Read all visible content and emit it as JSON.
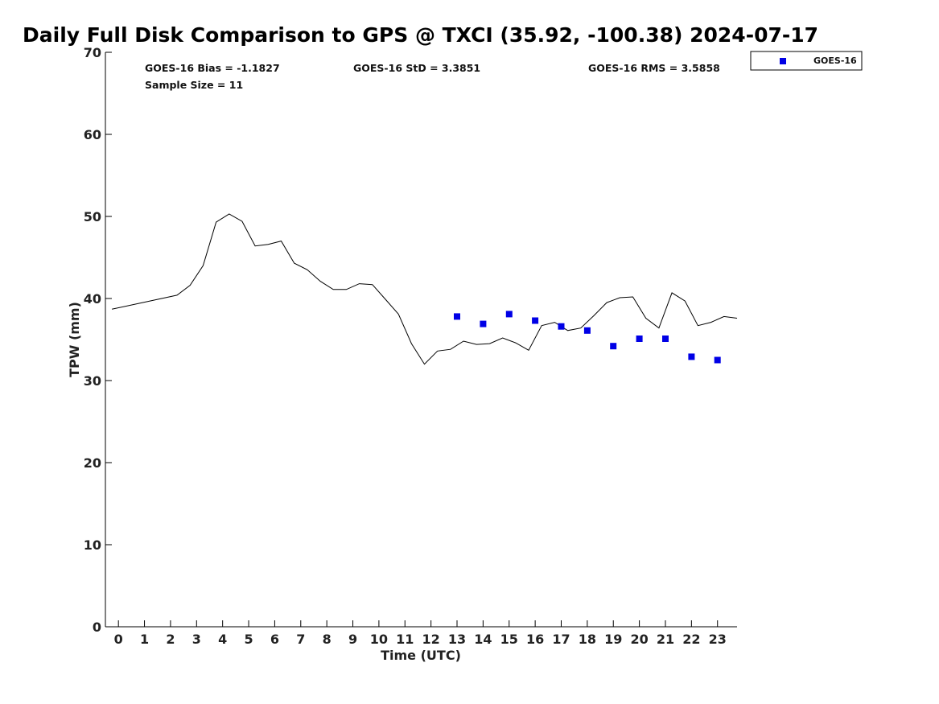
{
  "chart_data": {
    "type": "scatter",
    "title": "Daily Full Disk Comparison to GPS @ TXCI (35.92, -100.38) 2024-07-17",
    "xlabel": "Time (UTC)",
    "ylabel": "TPW (mm)",
    "xlim": [
      -0.5,
      23.75
    ],
    "ylim": [
      0,
      70
    ],
    "x_ticks": [
      0,
      1,
      2,
      3,
      4,
      5,
      6,
      7,
      8,
      9,
      10,
      11,
      12,
      13,
      14,
      15,
      16,
      17,
      18,
      19,
      20,
      21,
      22,
      23
    ],
    "y_ticks": [
      0,
      10,
      20,
      30,
      40,
      50,
      60,
      70
    ],
    "grid": false,
    "legend_position": "outside-top-right",
    "stats": {
      "bias": "GOES-16 Bias = -1.1827",
      "std": "GOES-16 StD = 3.3851",
      "rms": "GOES-16 RMS = 3.5858",
      "sample": "Sample Size = 11"
    },
    "series": [
      {
        "kind": "line",
        "color": "#000000",
        "x": [
          -0.25,
          2.25,
          2.75,
          3.25,
          3.75,
          4.25,
          4.75,
          5.25,
          5.75,
          6.25,
          6.75,
          7.25,
          7.75,
          8.25,
          8.75,
          9.25,
          9.75,
          10.25,
          10.75,
          11.25,
          11.75,
          12.25,
          12.75,
          13.25,
          13.75,
          14.25,
          14.75,
          15.25,
          15.75,
          16.25,
          16.75,
          17.25,
          17.75,
          18.25,
          18.75,
          19.25,
          19.75,
          20.25,
          20.75,
          21.25,
          21.75,
          22.25,
          22.75,
          23.25,
          23.75
        ],
        "y": [
          38.7,
          40.4,
          41.6,
          44.0,
          49.3,
          50.3,
          49.4,
          46.4,
          46.6,
          47.0,
          44.3,
          43.5,
          42.1,
          41.1,
          41.1,
          41.8,
          41.7,
          39.9,
          38.1,
          34.5,
          32.0,
          33.6,
          33.8,
          34.8,
          34.4,
          34.5,
          35.2,
          34.6,
          33.7,
          36.7,
          37.1,
          36.1,
          36.4,
          37.9,
          39.5,
          40.1,
          40.2,
          37.6,
          36.4,
          40.7,
          39.7,
          36.7,
          37.1,
          37.8,
          37.6
        ]
      },
      {
        "kind": "points",
        "name": "GOES-16",
        "color": "#0000e6",
        "x": [
          13,
          14,
          15,
          16,
          17,
          18,
          19,
          20,
          21,
          22,
          23
        ],
        "y": [
          37.8,
          36.9,
          38.1,
          37.3,
          36.6,
          36.1,
          34.2,
          35.1,
          35.1,
          32.9,
          32.5
        ]
      }
    ]
  }
}
